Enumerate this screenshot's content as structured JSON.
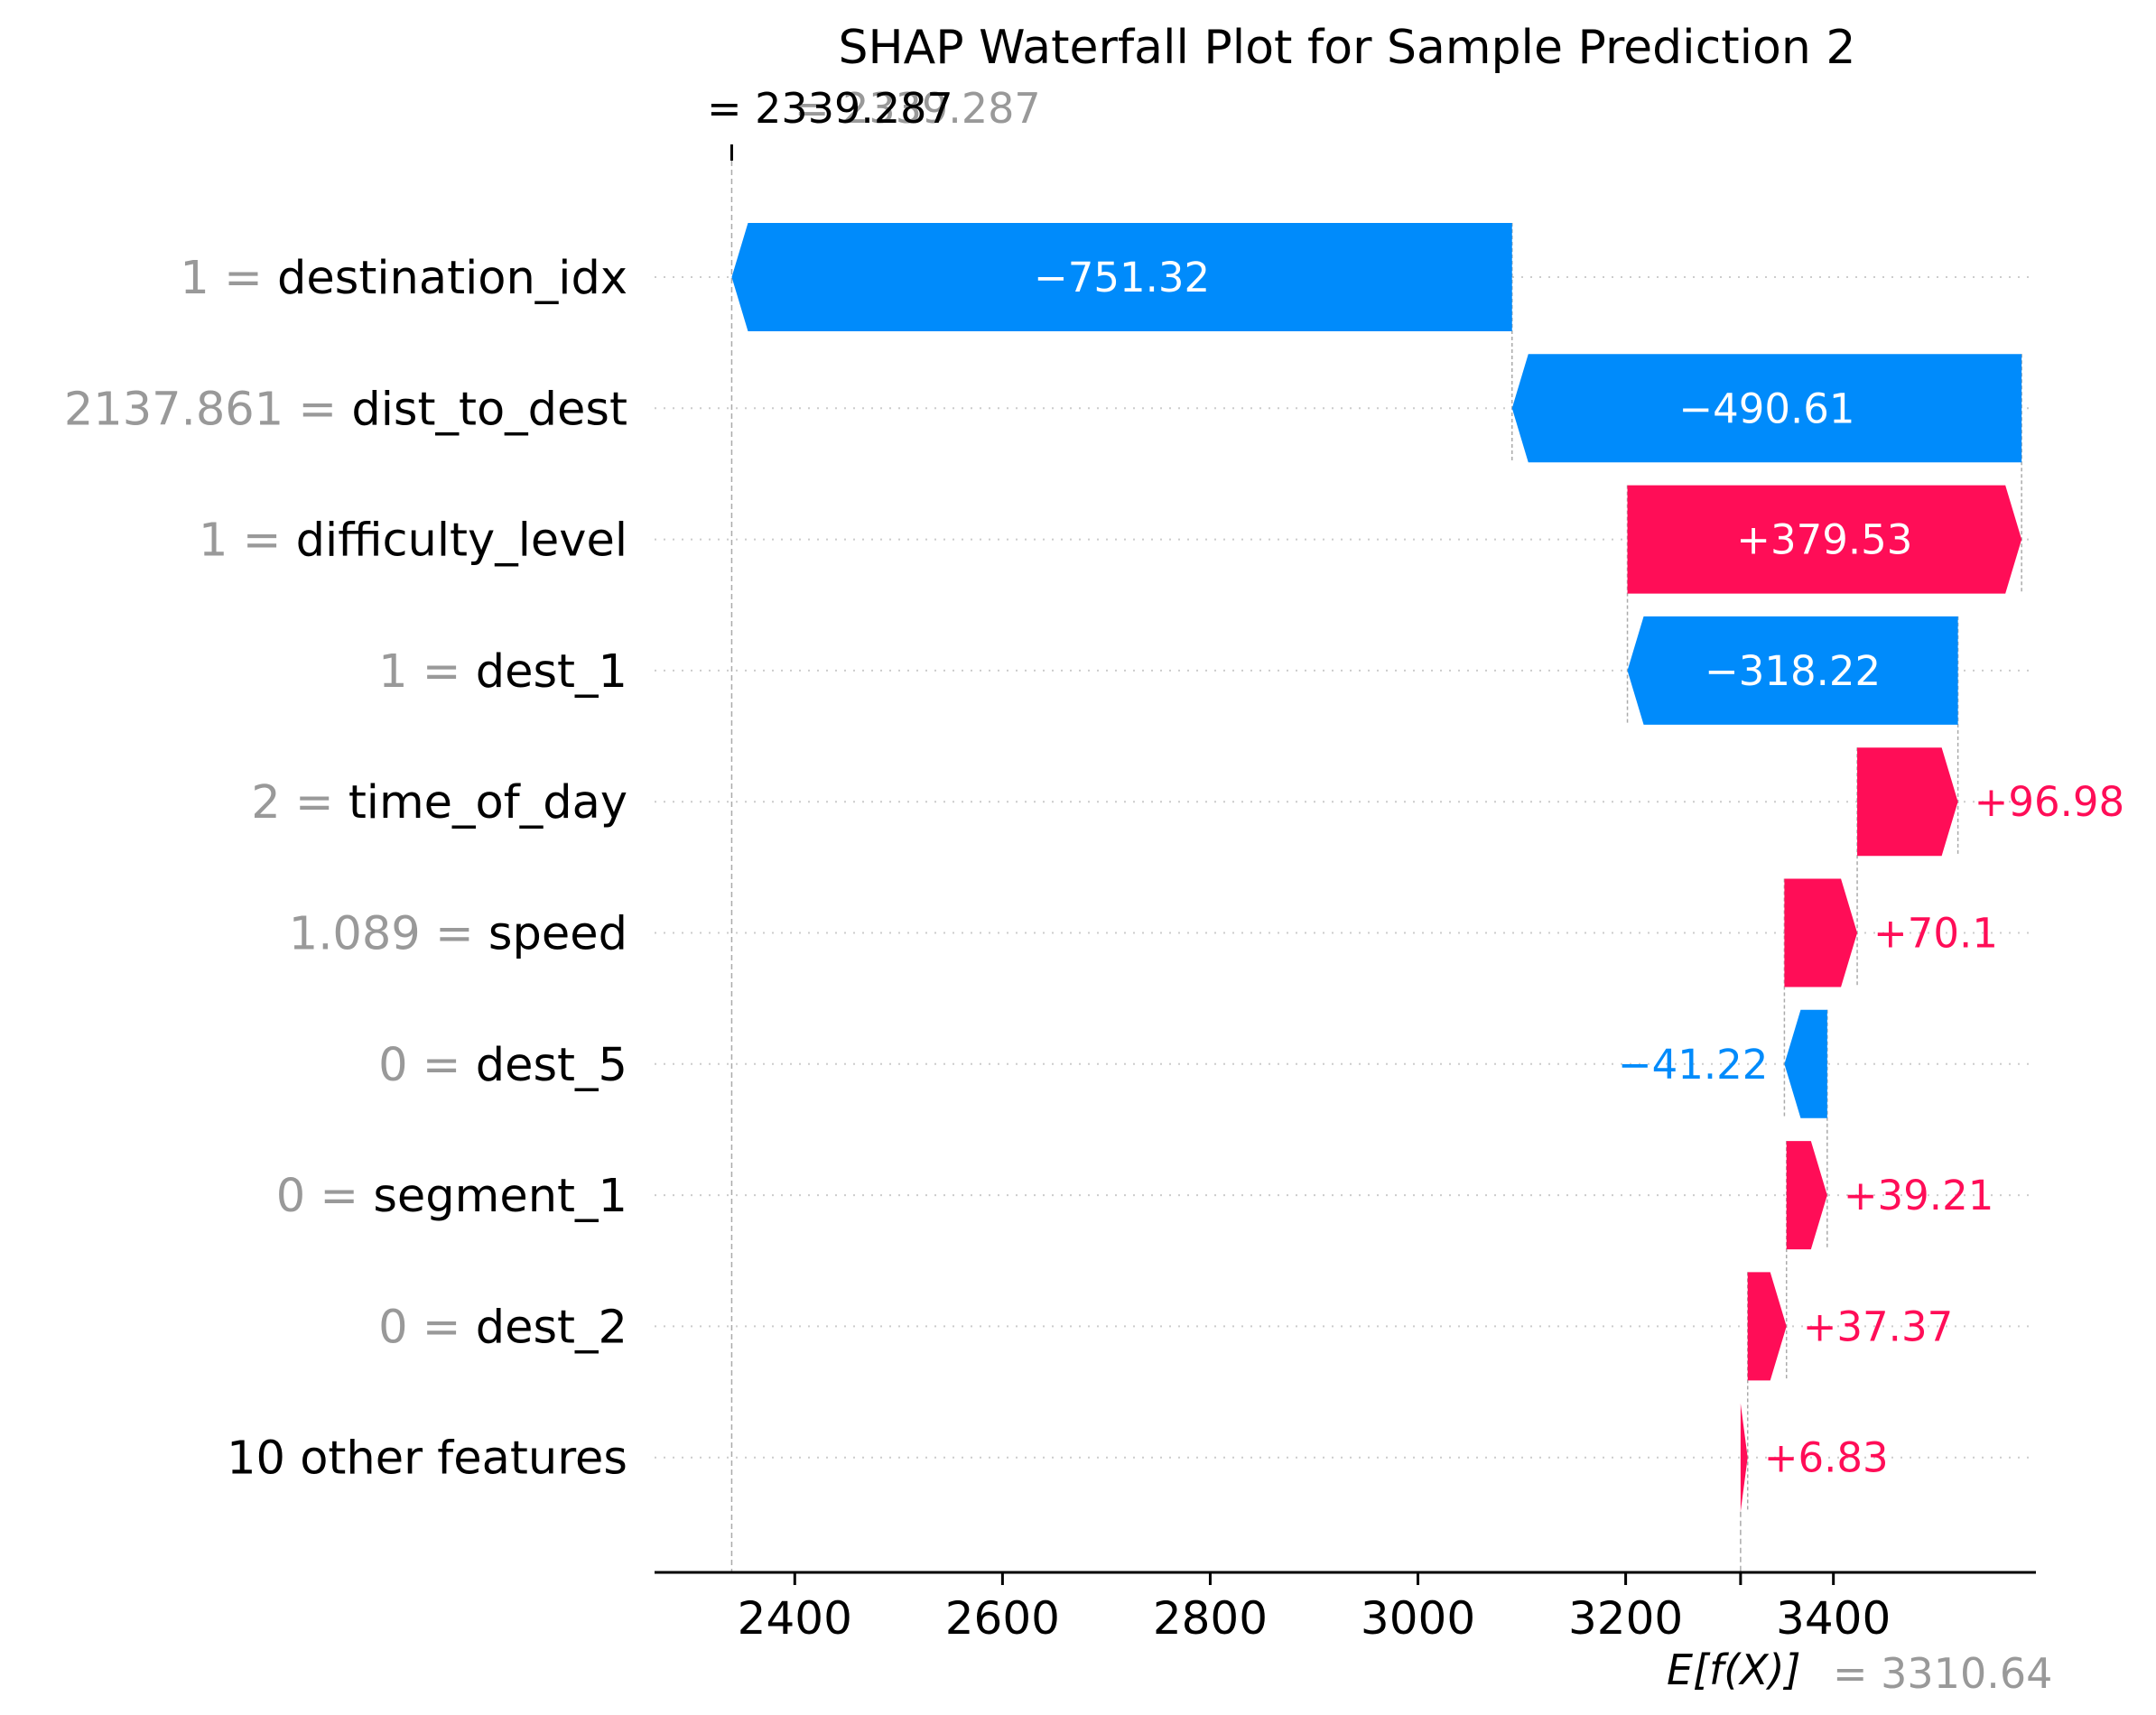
{
  "chart_data": {
    "type": "waterfall",
    "title": "SHAP Waterfall Plot for Sample Prediction 2",
    "base_value": 3310.64,
    "base_label": "E[f(X)]",
    "base_value_text": "= 3310.64",
    "prediction_value": 2339.287,
    "prediction_label_text": "= 2339.287",
    "prediction_value_text_ghost": "= 2339.287",
    "features": [
      {
        "value": "1",
        "name": "destination_idx",
        "shap": -751.32,
        "label": "−751.32"
      },
      {
        "value": "2137.861",
        "name": "dist_to_dest",
        "shap": -490.61,
        "label": "−490.61"
      },
      {
        "value": "1",
        "name": "difficulty_level",
        "shap": 379.53,
        "label": "+379.53"
      },
      {
        "value": "1",
        "name": "dest_1",
        "shap": -318.22,
        "label": "−318.22"
      },
      {
        "value": "2",
        "name": "time_of_day",
        "shap": 96.98,
        "label": "+96.98"
      },
      {
        "value": "1.089",
        "name": "speed",
        "shap": 70.1,
        "label": "+70.1"
      },
      {
        "value": "0",
        "name": "dest_5",
        "shap": -41.22,
        "label": "−41.22"
      },
      {
        "value": "0",
        "name": "segment_1",
        "shap": 39.21,
        "label": "+39.21"
      },
      {
        "value": "0",
        "name": "dest_2",
        "shap": 37.37,
        "label": "+37.37"
      },
      {
        "value": "",
        "name": "10 other features",
        "shap": 6.83,
        "label": "+6.83"
      }
    ],
    "x_ticks": [
      2400,
      2600,
      2800,
      3000,
      3200,
      3400
    ],
    "xlim": [
      2265,
      3595
    ],
    "colors": {
      "positive": "#ff0d57",
      "negative": "#008bfb"
    },
    "grid": "dotted horizontal",
    "legend": "none"
  }
}
